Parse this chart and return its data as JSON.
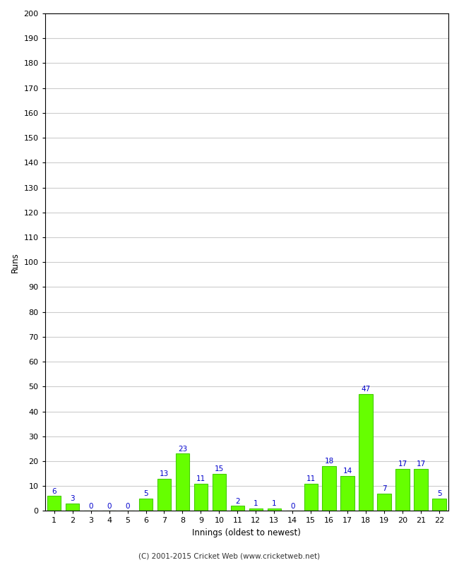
{
  "innings": [
    1,
    2,
    3,
    4,
    5,
    6,
    7,
    8,
    9,
    10,
    11,
    12,
    13,
    14,
    15,
    16,
    17,
    18,
    19,
    20,
    21,
    22
  ],
  "runs": [
    6,
    3,
    0,
    0,
    0,
    5,
    13,
    23,
    11,
    15,
    2,
    1,
    1,
    0,
    11,
    18,
    14,
    47,
    7,
    17,
    17,
    5
  ],
  "bar_color": "#66ff00",
  "bar_edge_color": "#44cc00",
  "label_color": "#0000cc",
  "background_color": "#ffffff",
  "plot_bg_color": "#ffffff",
  "grid_color": "#cccccc",
  "xlabel": "Innings (oldest to newest)",
  "ylabel": "Runs",
  "ylim": [
    0,
    200
  ],
  "yticks": [
    0,
    10,
    20,
    30,
    40,
    50,
    60,
    70,
    80,
    90,
    100,
    110,
    120,
    130,
    140,
    150,
    160,
    170,
    180,
    190,
    200
  ],
  "footer": "(C) 2001-2015 Cricket Web (www.cricketweb.net)",
  "label_fontsize": 7.5,
  "axis_fontsize": 8.5,
  "footer_fontsize": 7.5,
  "tick_fontsize": 8
}
